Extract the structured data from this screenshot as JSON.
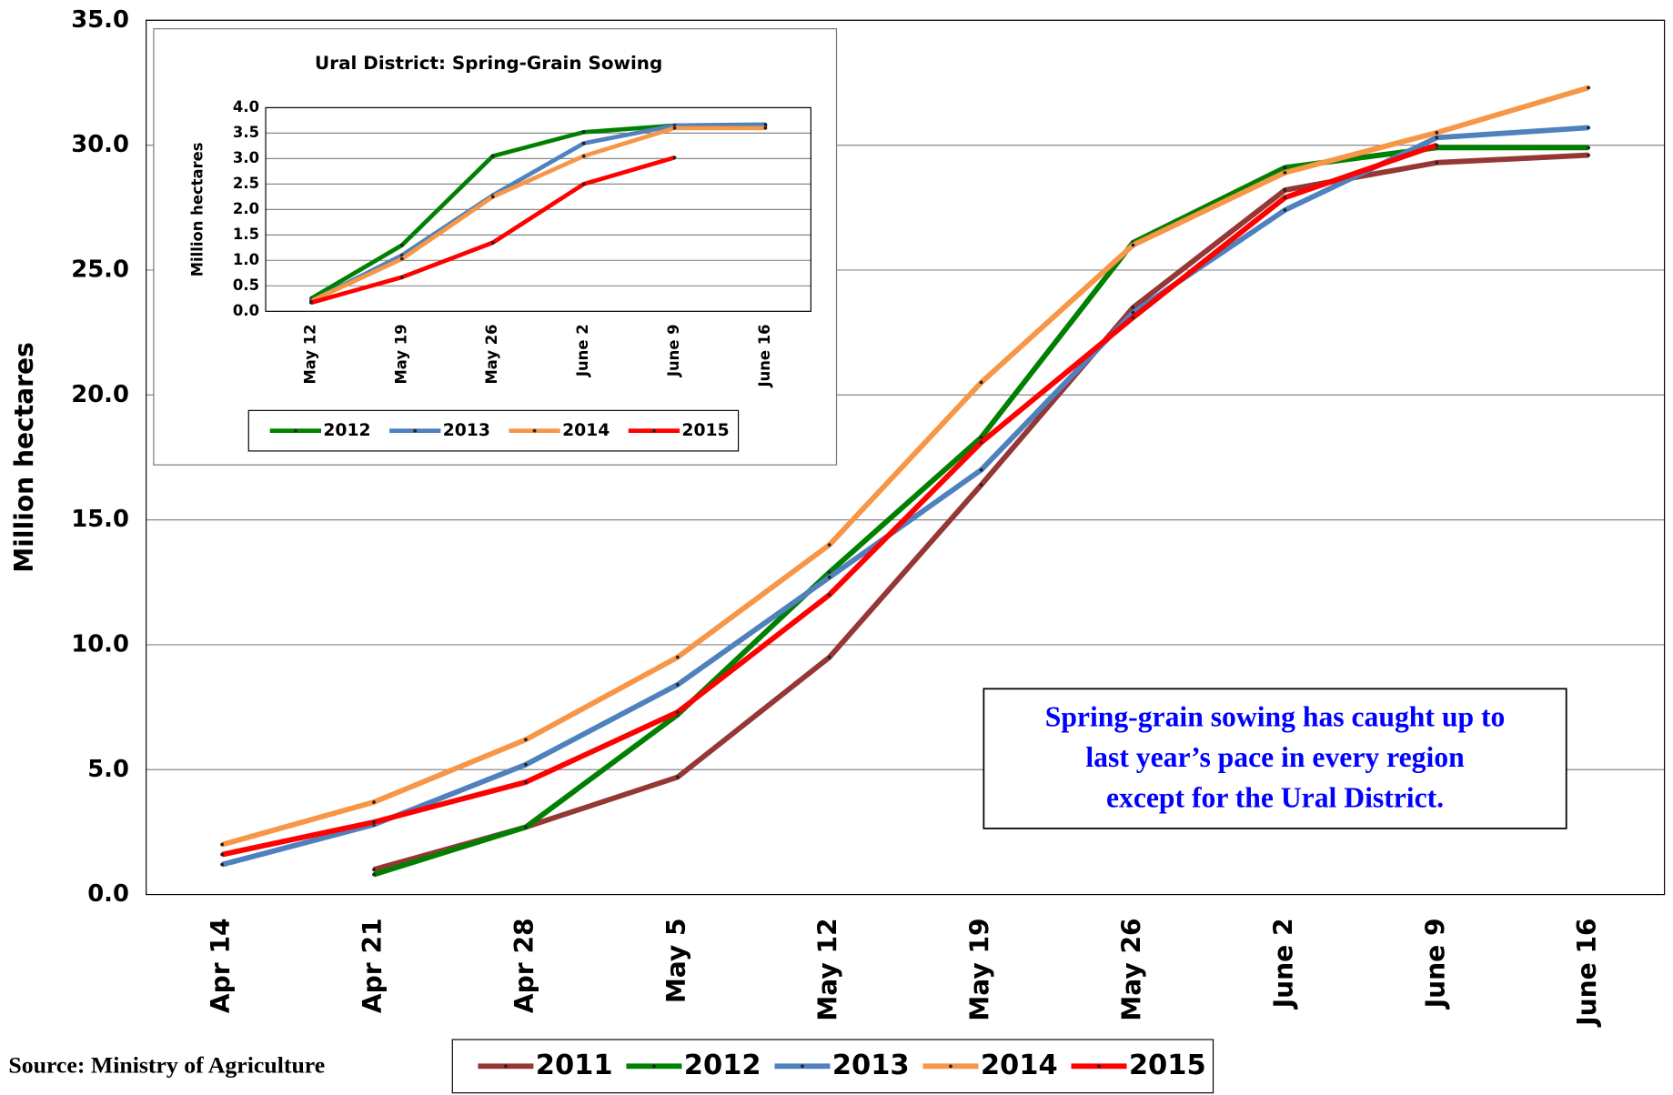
{
  "chart_data": [
    {
      "type": "line",
      "y_label": "Million hectares",
      "categories": [
        "Apr 14",
        "Apr 21",
        "Apr 28",
        "May 5",
        "May 12",
        "May 19",
        "May 26",
        "June 2",
        "June 9",
        "June 16"
      ],
      "series": [
        {
          "name": "2011",
          "color": "#953735",
          "values": [
            null,
            1.0,
            2.7,
            4.7,
            9.5,
            16.4,
            23.5,
            28.2,
            29.3,
            29.6
          ]
        },
        {
          "name": "2012",
          "color": "#008000",
          "values": [
            null,
            0.8,
            2.7,
            7.2,
            12.9,
            18.3,
            26.1,
            29.1,
            29.9,
            29.9
          ]
        },
        {
          "name": "2013",
          "color": "#4f81bd",
          "values": [
            1.2,
            2.8,
            5.2,
            8.4,
            12.7,
            17.0,
            23.3,
            27.4,
            30.3,
            30.7
          ]
        },
        {
          "name": "2014",
          "color": "#f79646",
          "values": [
            2.0,
            3.7,
            6.2,
            9.5,
            14.0,
            20.5,
            26.0,
            28.9,
            30.5,
            32.3
          ]
        },
        {
          "name": "2015",
          "color": "#ff0000",
          "values": [
            1.6,
            2.9,
            4.5,
            7.3,
            12.0,
            18.1,
            23.1,
            27.9,
            30.0,
            null
          ]
        }
      ],
      "ylim": [
        0,
        35
      ],
      "yticks": [
        {
          "value": 0,
          "label": "0.0"
        },
        {
          "value": 5,
          "label": "5.0"
        },
        {
          "value": 10,
          "label": "10.0"
        },
        {
          "value": 15,
          "label": "15.0"
        },
        {
          "value": 20,
          "label": "20.0"
        },
        {
          "value": 25,
          "label": "25.0"
        },
        {
          "value": 30,
          "label": "30.0"
        },
        {
          "value": 35,
          "label": "35.0"
        }
      ],
      "grid": true,
      "legend": "bottom",
      "annotation": [
        "Spring-grain sowing has caught up to",
        "last year’s pace in every region",
        "except for the Ural District."
      ],
      "source": "Source:  Ministry of Agriculture"
    },
    {
      "type": "line",
      "title": "Ural District:  Spring-Grain Sowing",
      "y_label": "Million hectares",
      "categories": [
        "May 12",
        "May 19",
        "May 26",
        "June 2",
        "June 9",
        "June 16"
      ],
      "series": [
        {
          "name": "2012",
          "color": "#008000",
          "values": [
            0.25,
            1.3,
            3.05,
            3.52,
            3.65,
            3.65
          ]
        },
        {
          "name": "2013",
          "color": "#4f81bd",
          "values": [
            0.2,
            1.1,
            2.28,
            3.3,
            3.65,
            3.67
          ]
        },
        {
          "name": "2014",
          "color": "#f79646",
          "values": [
            0.2,
            1.03,
            2.25,
            3.05,
            3.6,
            3.6
          ]
        },
        {
          "name": "2015",
          "color": "#ff0000",
          "values": [
            0.17,
            0.67,
            1.35,
            2.5,
            3.02,
            null
          ]
        }
      ],
      "ylim": [
        0,
        4
      ],
      "yticks": [
        {
          "value": 0,
          "label": "0.0"
        },
        {
          "value": 0.5,
          "label": "0.5"
        },
        {
          "value": 1,
          "label": "1.0"
        },
        {
          "value": 1.5,
          "label": "1.5"
        },
        {
          "value": 2,
          "label": "2.0"
        },
        {
          "value": 2.5,
          "label": "2.5"
        },
        {
          "value": 3,
          "label": "3.0"
        },
        {
          "value": 3.5,
          "label": "3.5"
        },
        {
          "value": 4,
          "label": "4.0"
        }
      ],
      "grid": true,
      "legend": "bottom"
    }
  ]
}
